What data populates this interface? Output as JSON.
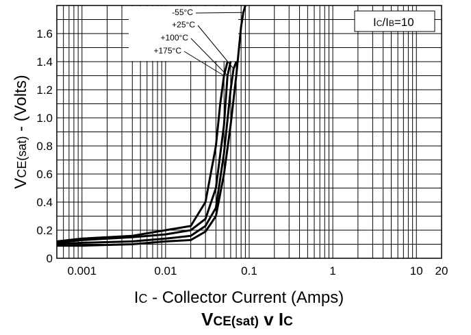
{
  "chart_data": {
    "type": "line",
    "title": "VCE(sat) v IC",
    "title_parts": {
      "v1": "V",
      "s1": "CE(sat)",
      "mid": " v ",
      "v2": "I",
      "s2": "C"
    },
    "xlabel": "IC - Collector Current (Amps)",
    "xlabel_parts": {
      "v": "I",
      "s": "C",
      "rest": " - Collector Current (Amps)"
    },
    "ylabel": "VCE(sat) - (Volts)",
    "ylabel_parts": {
      "v": "V",
      "s": "CE(sat)",
      "rest": " - (Volts)"
    },
    "x_scale": "log",
    "xlim": [
      0.0005,
      20
    ],
    "ylim": [
      0,
      1.8
    ],
    "x_ticks": [
      {
        "value": 0.001,
        "label": "0.001"
      },
      {
        "value": 0.01,
        "label": "0.01"
      },
      {
        "value": 0.1,
        "label": "0.1"
      },
      {
        "value": 1,
        "label": "1"
      },
      {
        "value": 10,
        "label": "10"
      },
      {
        "value": 20,
        "label": "20"
      }
    ],
    "y_ticks": [
      {
        "value": 0,
        "label": "0"
      },
      {
        "value": 0.2,
        "label": "0.2"
      },
      {
        "value": 0.4,
        "label": "0.4"
      },
      {
        "value": 0.6,
        "label": "0.6"
      },
      {
        "value": 0.8,
        "label": "0.8"
      },
      {
        "value": 1.0,
        "label": "1.0"
      },
      {
        "value": 1.2,
        "label": "1.2"
      },
      {
        "value": 1.4,
        "label": "1.4"
      },
      {
        "value": 1.6,
        "label": "1.6"
      }
    ],
    "grid": true,
    "annotation": {
      "text": "IC/IB=10",
      "parts": {
        "a": "I",
        "b": "C",
        "c": "/I",
        "d": "B",
        "e": "=10"
      }
    },
    "series": [
      {
        "name": "-55°C",
        "x": [
          0.0005,
          0.001,
          0.004,
          0.01,
          0.02,
          0.03,
          0.04,
          0.05,
          0.06,
          0.07,
          0.08,
          0.085,
          0.09
        ],
        "y": [
          0.09,
          0.09,
          0.1,
          0.12,
          0.13,
          0.19,
          0.3,
          0.6,
          0.95,
          1.3,
          1.65,
          1.75,
          1.8
        ]
      },
      {
        "name": "+25°C",
        "x": [
          0.0005,
          0.001,
          0.004,
          0.01,
          0.02,
          0.03,
          0.04,
          0.05,
          0.06,
          0.065,
          0.07
        ],
        "y": [
          0.1,
          0.11,
          0.12,
          0.14,
          0.16,
          0.23,
          0.36,
          0.75,
          1.2,
          1.35,
          1.4
        ]
      },
      {
        "name": "+100°C",
        "x": [
          0.0005,
          0.001,
          0.004,
          0.01,
          0.02,
          0.03,
          0.04,
          0.05,
          0.055,
          0.06
        ],
        "y": [
          0.11,
          0.13,
          0.15,
          0.17,
          0.2,
          0.28,
          0.5,
          0.95,
          1.3,
          1.4
        ]
      },
      {
        "name": "+175°C",
        "x": [
          0.0005,
          0.001,
          0.004,
          0.01,
          0.02,
          0.03,
          0.04,
          0.045,
          0.05,
          0.055
        ],
        "y": [
          0.12,
          0.14,
          0.16,
          0.2,
          0.23,
          0.4,
          0.8,
          1.1,
          1.3,
          1.4
        ]
      }
    ],
    "series_labels": [
      "-55°C",
      "+25°C",
      "+100°C",
      "+175°C"
    ]
  }
}
